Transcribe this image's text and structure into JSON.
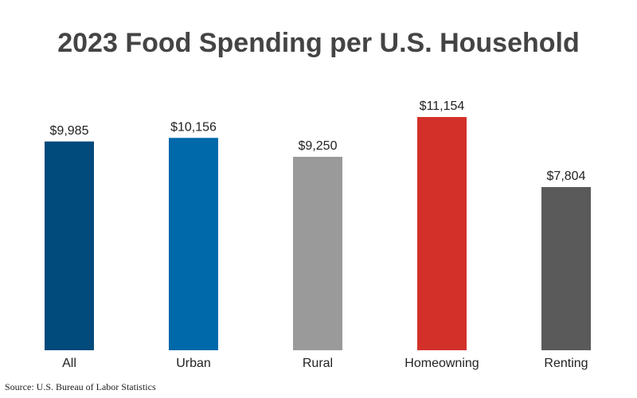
{
  "chart_data": {
    "type": "bar",
    "title": "2023 Food Spending per U.S. Household",
    "categories": [
      "All",
      "Urban",
      "Rural",
      "Homeowning",
      "Renting"
    ],
    "values": [
      9985,
      10156,
      9250,
      11154,
      7804
    ],
    "value_labels": [
      "$9,985",
      "$10,156",
      "$9,250",
      "$11,154",
      "$7,804"
    ],
    "colors": [
      "#004a7c",
      "#0069aa",
      "#9a9a9a",
      "#d3302a",
      "#5a5a5a"
    ],
    "source": "Source: U.S. Bureau of Labor Statistics"
  }
}
